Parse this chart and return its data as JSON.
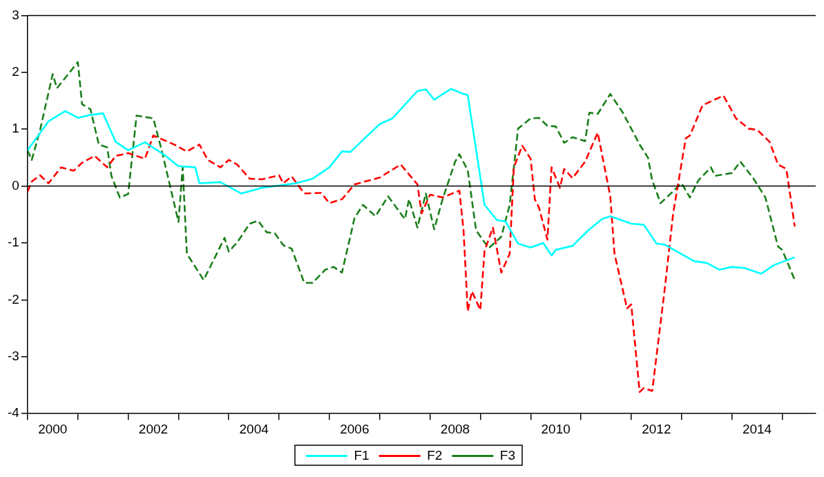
{
  "chart_data": {
    "type": "line",
    "legend": "bottom",
    "grid": false,
    "marker": "none",
    "xlim": [
      "2000-01",
      "2015-09"
    ],
    "xticks": [
      {
        "value": "2000-01",
        "label": null
      },
      {
        "value": "2000-07",
        "label": "2000"
      },
      {
        "value": "2001-01",
        "label": null
      },
      {
        "value": "2002-01",
        "label": null
      },
      {
        "value": "2002-07",
        "label": "2002"
      },
      {
        "value": "2003-01",
        "label": null
      },
      {
        "value": "2004-01",
        "label": null
      },
      {
        "value": "2004-07",
        "label": "2004"
      },
      {
        "value": "2005-01",
        "label": null
      },
      {
        "value": "2006-01",
        "label": null
      },
      {
        "value": "2006-07",
        "label": "2006"
      },
      {
        "value": "2007-01",
        "label": null
      },
      {
        "value": "2008-01",
        "label": null
      },
      {
        "value": "2008-07",
        "label": "2008"
      },
      {
        "value": "2009-01",
        "label": null
      },
      {
        "value": "2010-01",
        "label": null
      },
      {
        "value": "2010-07",
        "label": "2010"
      },
      {
        "value": "2011-01",
        "label": null
      },
      {
        "value": "2012-01",
        "label": null
      },
      {
        "value": "2012-07",
        "label": "2012"
      },
      {
        "value": "2013-01",
        "label": null
      },
      {
        "value": "2014-01",
        "label": null
      },
      {
        "value": "2014-07",
        "label": "2014"
      },
      {
        "value": "2015-01",
        "label": null
      }
    ],
    "ylim": [
      -4,
      3
    ],
    "yticks": [
      -4,
      -3,
      -2,
      -1,
      0,
      1,
      2,
      3
    ],
    "ref_lines": [
      {
        "axis": "y",
        "value": 0,
        "color": "#000000",
        "line_style": "solid"
      }
    ],
    "series": [
      {
        "name": "F1",
        "color": "#00ffff",
        "line_style": "solid",
        "x": [
          "2000-01",
          "2000-06",
          "2000-10",
          "2001-01",
          "2001-04",
          "2001-07",
          "2001-10",
          "2002-01",
          "2002-05",
          "2002-10",
          "2003-01",
          "2003-05",
          "2003-06",
          "2003-11",
          "2004-04",
          "2004-09",
          "2005-05",
          "2005-09",
          "2006-01",
          "2006-04",
          "2006-06",
          "2007-01",
          "2007-04",
          "2007-10",
          "2007-12",
          "2008-02",
          "2008-06",
          "2008-09",
          "2008-10",
          "2009-02",
          "2009-05",
          "2009-07",
          "2009-10",
          "2010-01",
          "2010-04",
          "2010-06",
          "2010-07",
          "2010-11",
          "2011-03",
          "2011-06",
          "2011-08",
          "2012-01",
          "2012-04",
          "2012-07",
          "2012-09",
          "2013-04",
          "2013-07",
          "2013-10",
          "2014-01",
          "2014-04",
          "2014-08",
          "2014-11",
          "2015-04"
        ],
        "values": [
          0.63,
          1.14,
          1.32,
          1.2,
          1.25,
          1.28,
          0.78,
          0.63,
          0.77,
          0.53,
          0.35,
          0.33,
          0.05,
          0.07,
          -0.13,
          -0.03,
          0.05,
          0.13,
          0.33,
          0.61,
          0.6,
          1.09,
          1.19,
          1.67,
          1.7,
          1.52,
          1.71,
          1.62,
          1.6,
          -0.33,
          -0.6,
          -0.62,
          -1.01,
          -1.08,
          -1.0,
          -1.22,
          -1.12,
          -1.05,
          -0.76,
          -0.58,
          -0.53,
          -0.66,
          -0.68,
          -1.01,
          -1.03,
          -1.32,
          -1.35,
          -1.47,
          -1.42,
          -1.44,
          -1.54,
          -1.39,
          -1.25
        ]
      },
      {
        "name": "F2",
        "color": "#ff0000",
        "line_style": "dashed",
        "x": [
          "2000-01",
          "2000-02",
          "2000-04",
          "2000-06",
          "2000-09",
          "2000-12",
          "2001-02",
          "2001-05",
          "2001-08",
          "2001-10",
          "2002-01",
          "2002-05",
          "2002-07",
          "2002-12",
          "2003-03",
          "2003-06",
          "2003-08",
          "2003-11",
          "2004-01",
          "2004-03",
          "2004-06",
          "2004-09",
          "2005-01",
          "2005-02",
          "2005-04",
          "2005-07",
          "2005-11",
          "2006-01",
          "2006-04",
          "2006-07",
          "2007-01",
          "2007-06",
          "2007-10",
          "2007-11",
          "2008-01",
          "2008-04",
          "2008-08",
          "2008-09",
          "2008-10",
          "2008-11",
          "2009-01",
          "2009-02",
          "2009-04",
          "2009-06",
          "2009-08",
          "2009-09",
          "2009-11",
          "2010-01",
          "2010-02",
          "2010-03",
          "2010-05",
          "2010-06",
          "2010-08",
          "2010-09",
          "2010-11",
          "2011-02",
          "2011-05",
          "2011-08",
          "2011-09",
          "2011-12",
          "2012-01",
          "2012-03",
          "2012-04",
          "2012-06",
          "2012-09",
          "2012-11",
          "2013-02",
          "2013-03",
          "2013-06",
          "2013-08",
          "2013-11",
          "2014-02",
          "2014-05",
          "2014-07",
          "2014-10",
          "2014-12",
          "2015-02",
          "2015-04"
        ],
        "values": [
          -0.1,
          0.08,
          0.19,
          0.05,
          0.33,
          0.27,
          0.41,
          0.53,
          0.33,
          0.53,
          0.58,
          0.48,
          0.89,
          0.73,
          0.61,
          0.73,
          0.46,
          0.33,
          0.46,
          0.38,
          0.13,
          0.12,
          0.19,
          0.05,
          0.17,
          -0.13,
          -0.12,
          -0.3,
          -0.23,
          0.03,
          0.15,
          0.38,
          0.03,
          -0.48,
          -0.15,
          -0.2,
          -0.08,
          -0.78,
          -2.2,
          -1.85,
          -2.18,
          -1.14,
          -0.73,
          -1.52,
          -1.19,
          0.33,
          0.71,
          0.48,
          -0.23,
          -0.38,
          -0.94,
          0.33,
          -0.03,
          0.3,
          0.14,
          0.43,
          0.94,
          -0.18,
          -1.19,
          -2.15,
          -2.08,
          -3.62,
          -3.55,
          -3.6,
          -1.8,
          -0.48,
          0.84,
          0.89,
          1.42,
          1.49,
          1.59,
          1.19,
          1.01,
          0.99,
          0.78,
          0.38,
          0.3,
          -0.71
        ]
      },
      {
        "name": "F3",
        "color": "#1a7f1a",
        "line_style": "dashed",
        "x": [
          "2000-01",
          "2000-02",
          "2000-04",
          "2000-07",
          "2000-08",
          "2001-01",
          "2001-02",
          "2001-04",
          "2001-06",
          "2001-08",
          "2001-09",
          "2001-11",
          "2002-01",
          "2002-03",
          "2002-07",
          "2002-09",
          "2003-01",
          "2003-02",
          "2003-03",
          "2003-07",
          "2003-12",
          "2004-01",
          "2004-03",
          "2004-06",
          "2004-08",
          "2004-10",
          "2004-12",
          "2005-02",
          "2005-04",
          "2005-07",
          "2005-09",
          "2005-12",
          "2006-02",
          "2006-04",
          "2006-07",
          "2006-09",
          "2006-12",
          "2007-03",
          "2007-07",
          "2007-08",
          "2007-10",
          "2007-12",
          "2008-02",
          "2008-04",
          "2008-07",
          "2008-08",
          "2008-10",
          "2008-12",
          "2009-03",
          "2009-06",
          "2009-08",
          "2009-10",
          "2010-01",
          "2010-03",
          "2010-05",
          "2010-07",
          "2010-09",
          "2010-11",
          "2011-02",
          "2011-03",
          "2011-05",
          "2011-08",
          "2011-11",
          "2012-03",
          "2012-05",
          "2012-06",
          "2012-08",
          "2013-01",
          "2013-03",
          "2013-05",
          "2013-08",
          "2013-09",
          "2014-01",
          "2014-03",
          "2014-06",
          "2014-09",
          "2014-12",
          "2015-01",
          "2015-04"
        ],
        "values": [
          0.63,
          0.46,
          0.99,
          1.97,
          1.72,
          2.18,
          1.44,
          1.35,
          0.73,
          0.68,
          0.18,
          -0.2,
          -0.14,
          1.24,
          1.19,
          0.63,
          -0.63,
          0.33,
          -1.19,
          -1.65,
          -0.91,
          -1.15,
          -0.99,
          -0.66,
          -0.61,
          -0.81,
          -0.83,
          -1.04,
          -1.1,
          -1.7,
          -1.7,
          -1.47,
          -1.42,
          -1.52,
          -0.56,
          -0.33,
          -0.53,
          -0.18,
          -0.58,
          -0.23,
          -0.73,
          -0.13,
          -0.76,
          -0.23,
          0.43,
          0.56,
          0.28,
          -0.78,
          -1.09,
          -0.89,
          -0.33,
          1.01,
          1.19,
          1.2,
          1.06,
          1.05,
          0.76,
          0.86,
          0.79,
          1.29,
          1.27,
          1.62,
          1.29,
          0.73,
          0.5,
          0.1,
          -0.3,
          0.05,
          -0.2,
          0.1,
          0.33,
          0.18,
          0.23,
          0.43,
          0.15,
          -0.2,
          -1.06,
          -1.12,
          -1.65
        ]
      }
    ]
  }
}
